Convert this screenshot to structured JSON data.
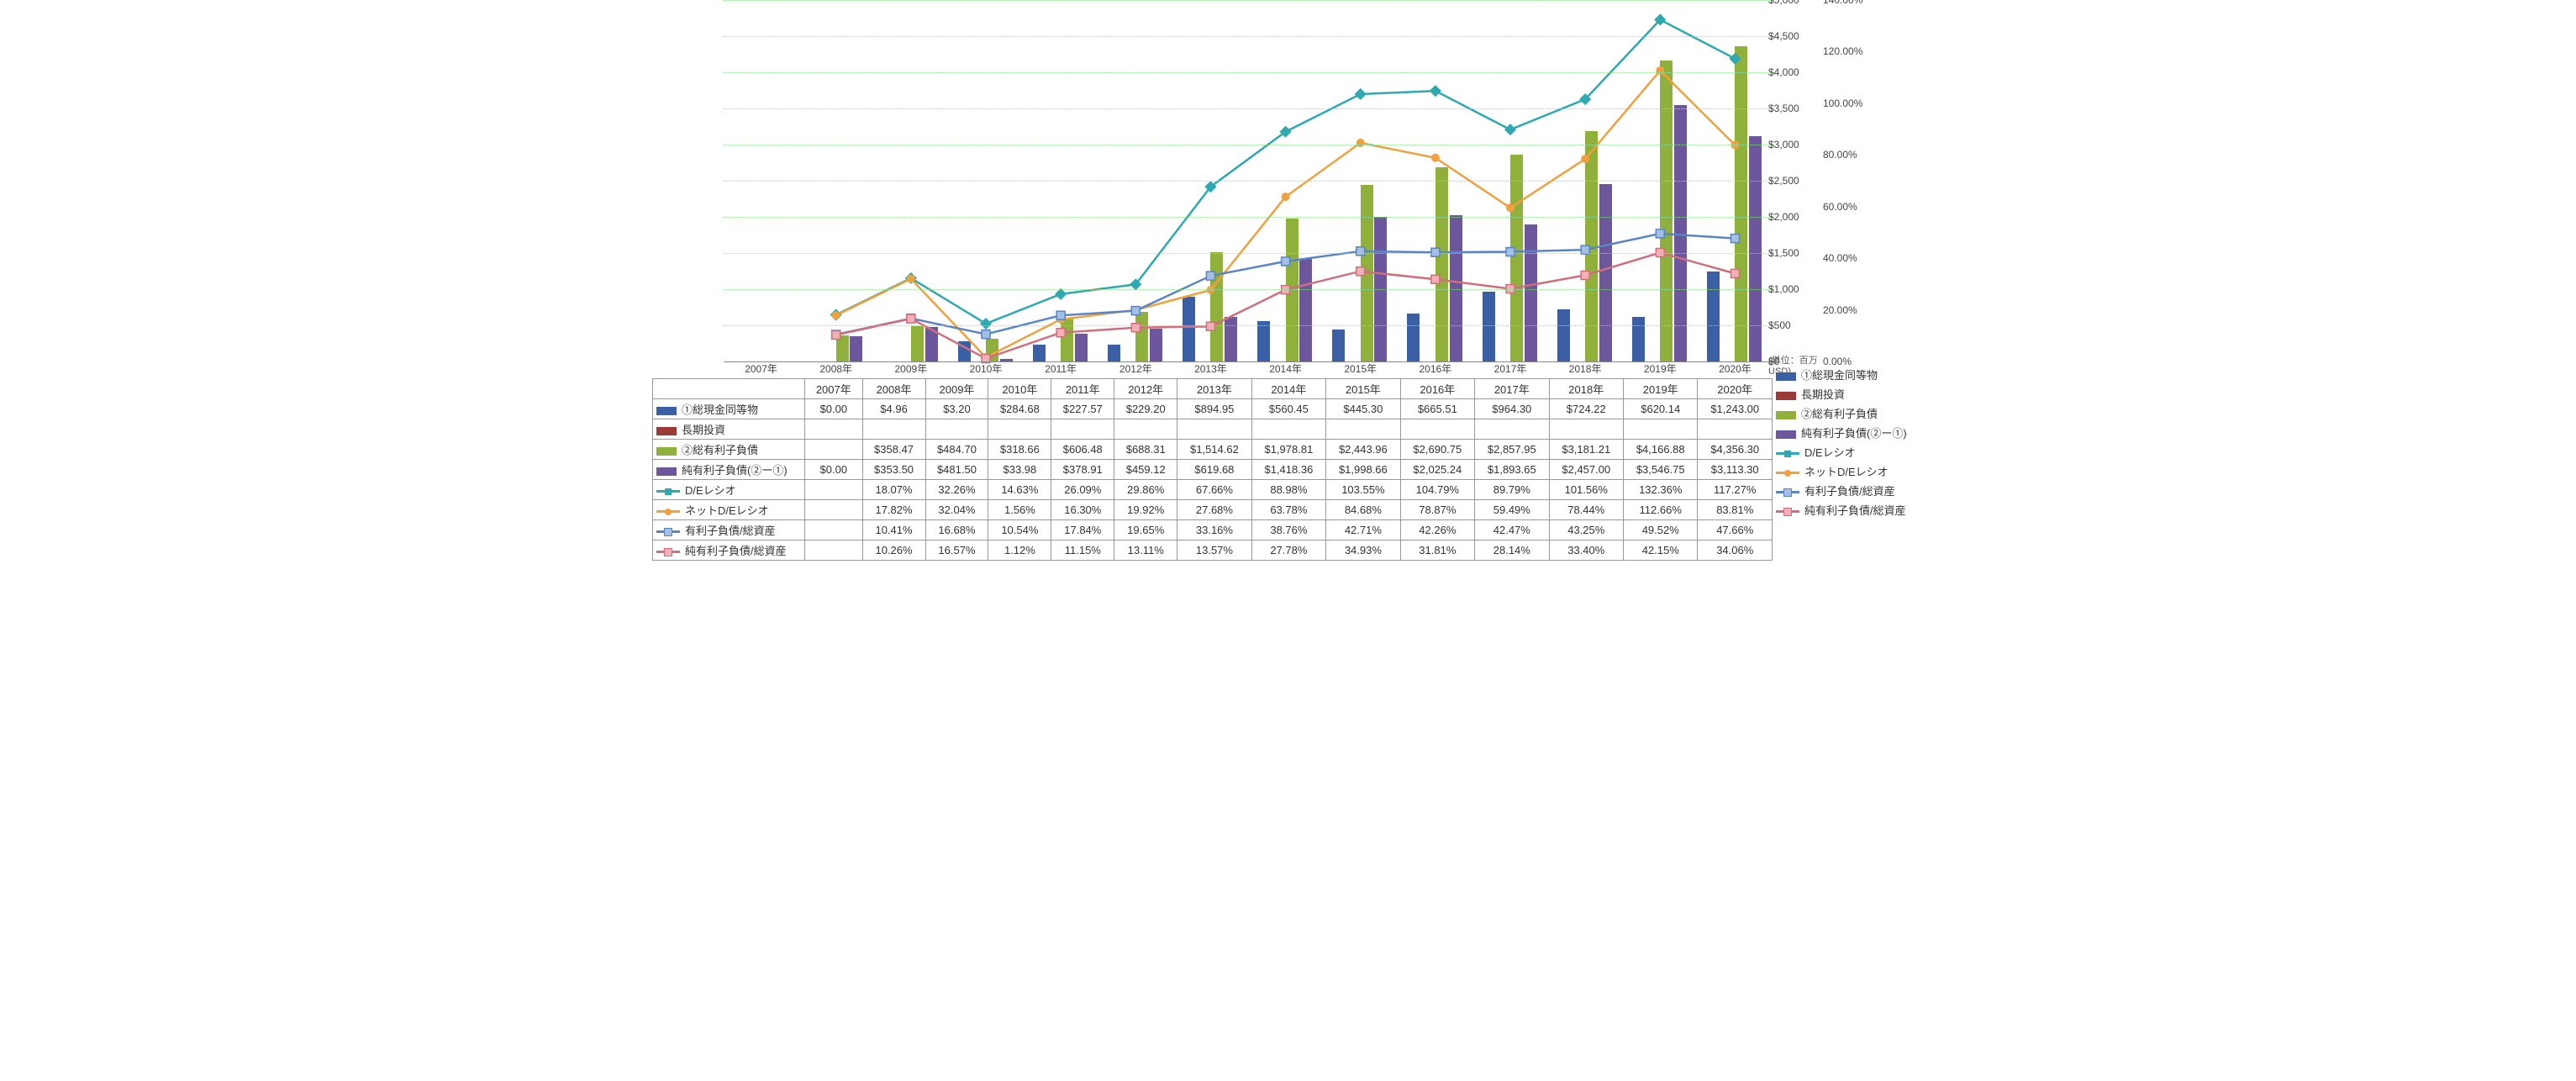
{
  "chart": {
    "type": "combo-bar-line",
    "years": [
      "2007年",
      "2008年",
      "2009年",
      "2010年",
      "2011年",
      "2012年",
      "2013年",
      "2014年",
      "2015年",
      "2016年",
      "2017年",
      "2018年",
      "2019年",
      "2020年"
    ],
    "left_axis": {
      "label": "",
      "unit_note": "(単位：百万USD)",
      "min": 0,
      "max": 5000,
      "step": 500,
      "format": "usd"
    },
    "right_axis": {
      "label": "",
      "min": 0,
      "max": 140,
      "step": 20,
      "format": "pct"
    },
    "colors": {
      "cash": "#3a5fa4",
      "longinv": "#9b3b38",
      "gross_debt": "#8fb03b",
      "net_debt": "#6c569c",
      "de_ratio": "#2ea9b0",
      "net_de": "#f0a03c",
      "ibd_ta": "#5985c4",
      "nibd_ta": "#d06e7c",
      "grid": "#9cdc9c",
      "bg": "#ffffff"
    },
    "bars": {
      "cash": {
        "name": "①総現金同等物",
        "values": [
          0.0,
          4.96,
          3.2,
          284.68,
          227.57,
          229.2,
          894.95,
          560.45,
          445.3,
          665.51,
          964.3,
          724.22,
          620.14,
          1243.0
        ],
        "color_key": "cash"
      },
      "longinv": {
        "name": "長期投資",
        "values": [
          null,
          null,
          null,
          null,
          null,
          null,
          null,
          null,
          null,
          null,
          null,
          null,
          null,
          null
        ],
        "color_key": "longinv"
      },
      "gross_debt": {
        "name": "②総有利子負債",
        "values": [
          null,
          358.47,
          484.7,
          318.66,
          606.48,
          688.31,
          1514.62,
          1978.81,
          2443.96,
          2690.75,
          2857.95,
          3181.21,
          4166.88,
          4356.3
        ],
        "color_key": "gross_debt"
      },
      "net_debt": {
        "name": "純有利子負債(②ー①)",
        "values": [
          0.0,
          353.5,
          481.5,
          33.98,
          378.91,
          459.12,
          619.68,
          1418.36,
          1998.66,
          2025.24,
          1893.65,
          2457.0,
          3546.75,
          3113.3
        ],
        "color_key": "net_debt"
      }
    },
    "lines": {
      "de_ratio": {
        "name": "D/Eレシオ",
        "values": [
          null,
          18.07,
          32.26,
          14.63,
          26.09,
          29.86,
          67.66,
          88.98,
          103.55,
          104.79,
          89.79,
          101.56,
          132.36,
          117.27
        ],
        "color_key": "de_ratio",
        "marker": "diamond"
      },
      "net_de": {
        "name": "ネットD/Eレシオ",
        "values": [
          null,
          17.82,
          32.04,
          1.56,
          16.3,
          19.92,
          27.68,
          63.78,
          84.68,
          78.87,
          59.49,
          78.44,
          112.66,
          83.81
        ],
        "color_key": "net_de",
        "marker": "circle"
      },
      "ibd_ta": {
        "name": "有利子負債/総資産",
        "values": [
          null,
          10.41,
          16.68,
          10.54,
          17.84,
          19.65,
          33.16,
          38.76,
          42.71,
          42.26,
          42.47,
          43.25,
          49.52,
          47.66
        ],
        "color_key": "ibd_ta",
        "marker": "square"
      },
      "nibd_ta": {
        "name": "純有利子負債/総資産",
        "values": [
          null,
          10.26,
          16.57,
          1.12,
          11.15,
          13.11,
          13.57,
          27.78,
          34.93,
          31.81,
          28.14,
          33.4,
          42.15,
          34.06
        ],
        "color_key": "nibd_ta",
        "marker": "square"
      }
    },
    "series_order_table": [
      "cash",
      "longinv",
      "gross_debt",
      "net_debt",
      "de_ratio",
      "net_de",
      "ibd_ta",
      "nibd_ta"
    ],
    "row_format": {
      "cash": "$#,##0.00",
      "longinv": "",
      "gross_debt": "$#,##0.00",
      "net_debt": "$#,##0.00",
      "de_ratio": "0.00%",
      "net_de": "0.00%",
      "ibd_ta": "0.00%",
      "nibd_ta": "0.00%"
    }
  }
}
